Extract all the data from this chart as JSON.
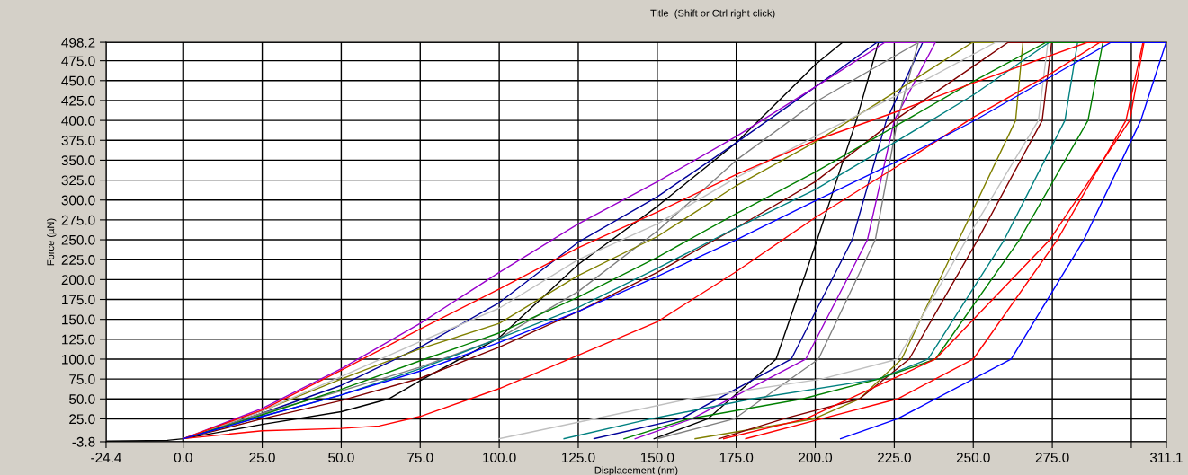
{
  "chart_data": {
    "type": "line",
    "title": "Title  (Shift or Ctrl right click)",
    "xlabel": "Displacement (nm)",
    "ylabel": "Force (µN)",
    "xlim": [
      -24.4,
      311.1
    ],
    "ylim": [
      -3.8,
      498.2
    ],
    "xticks": [
      {
        "value": -24.4,
        "label": "-24.4"
      },
      {
        "value": 0,
        "label": "0.0"
      },
      {
        "value": 25,
        "label": "25.0"
      },
      {
        "value": 50,
        "label": "50.0"
      },
      {
        "value": 75,
        "label": "75.0"
      },
      {
        "value": 100,
        "label": "100.0"
      },
      {
        "value": 125,
        "label": "125.0"
      },
      {
        "value": 150,
        "label": "150.0"
      },
      {
        "value": 175,
        "label": "175.0"
      },
      {
        "value": 200,
        "label": "200.0"
      },
      {
        "value": 225,
        "label": "225.0"
      },
      {
        "value": 250,
        "label": "250.0"
      },
      {
        "value": 275,
        "label": "275.0"
      },
      {
        "value": 300,
        "label": null
      },
      {
        "value": 311.1,
        "label": "311.1"
      }
    ],
    "yticks": [
      {
        "value": -3.8,
        "label": "-3.8"
      },
      {
        "value": 25,
        "label": "25.0"
      },
      {
        "value": 50,
        "label": "50.0"
      },
      {
        "value": 75,
        "label": "75.0"
      },
      {
        "value": 100,
        "label": "100.0"
      },
      {
        "value": 125,
        "label": "125.0"
      },
      {
        "value": 150,
        "label": "150.0"
      },
      {
        "value": 175,
        "label": "175.0"
      },
      {
        "value": 200,
        "label": "200.0"
      },
      {
        "value": 225,
        "label": "225.0"
      },
      {
        "value": 250,
        "label": "250.0"
      },
      {
        "value": 275,
        "label": "275.0"
      },
      {
        "value": 300,
        "label": "300.0"
      },
      {
        "value": 325,
        "label": "325.0"
      },
      {
        "value": 350,
        "label": "350.0"
      },
      {
        "value": 375,
        "label": "375.0"
      },
      {
        "value": 400,
        "label": "400.0"
      },
      {
        "value": 425,
        "label": "425.0"
      },
      {
        "value": 450,
        "label": "450.0"
      },
      {
        "value": 475,
        "label": "475.0"
      },
      {
        "value": 498.2,
        "label": "498.2"
      }
    ],
    "grid": true,
    "legend": false,
    "marker": "none",
    "line_style": "solid",
    "ref_lines": [
      {
        "axis": "x",
        "value": 0,
        "color": "#000000"
      }
    ],
    "series": [
      {
        "color": "#000000",
        "x": [
          -24,
          -5,
          0,
          25,
          50,
          65,
          75,
          100,
          125,
          150,
          175,
          200,
          208.6,
          220,
          213,
          200.6,
          187.6,
          166,
          149
        ],
        "values": [
          -3,
          -2,
          0,
          18,
          34,
          50,
          73,
          127,
          219,
          292,
          372,
          470,
          498,
          498,
          400,
          250,
          100,
          25,
          0
        ]
      },
      {
        "color": "#000099",
        "x": [
          0,
          25,
          50,
          75,
          100,
          125,
          150,
          175,
          200,
          219.5,
          234,
          222.5,
          211.7,
          192.4,
          157.5,
          130
        ],
        "values": [
          0,
          32,
          67,
          115,
          171,
          247,
          304,
          372,
          442,
          498,
          498,
          400,
          250,
          100,
          25,
          0
        ]
      },
      {
        "color": "#9900cc",
        "x": [
          0,
          25,
          50,
          75,
          100,
          125,
          150,
          175,
          200,
          222,
          238,
          225,
          216.5,
          197,
          161,
          143
        ],
        "values": [
          0,
          38,
          88,
          145,
          209,
          270,
          323,
          380,
          442,
          498,
          498,
          400,
          250,
          100,
          25,
          0
        ]
      },
      {
        "color": "#808080",
        "x": [
          0,
          25,
          50,
          75,
          100,
          125,
          150,
          175,
          200,
          232.6,
          232.6,
          226,
          219,
          201,
          174.4,
          150
        ],
        "values": [
          0,
          32,
          60,
          90,
          126,
          185,
          261,
          350,
          423,
          498,
          498,
          400,
          250,
          100,
          25,
          0
        ]
      },
      {
        "color": "#808000",
        "x": [
          0,
          25,
          50,
          75,
          100,
          125,
          150,
          175,
          200,
          225,
          249.7,
          265.7,
          263.4,
          245.4,
          227.3,
          214,
          199.6,
          162
        ],
        "values": [
          0,
          35,
          75,
          113,
          145,
          205,
          254,
          318,
          373,
          435,
          498,
          498,
          400,
          250,
          100,
          50,
          25,
          0
        ]
      },
      {
        "color": "#c0c0c0",
        "x": [
          0,
          25,
          50,
          75,
          100,
          125,
          150,
          175,
          200,
          225,
          257,
          273.6,
          270.6,
          247.8,
          226,
          202,
          160,
          130,
          100
        ],
        "values": [
          0,
          35,
          78,
          122,
          164,
          225,
          270,
          328,
          380,
          430,
          498,
          498,
          400,
          250,
          100,
          75,
          50,
          25,
          0
        ]
      },
      {
        "color": "#800000",
        "x": [
          0,
          25,
          50,
          75,
          100,
          125,
          150,
          175,
          200,
          225,
          250,
          261,
          274.8,
          271.8,
          251.4,
          229.7,
          214,
          190,
          169.5
        ],
        "values": [
          0,
          25,
          48,
          76,
          115,
          160,
          209,
          265,
          323,
          400,
          468,
          498,
          498,
          400,
          250,
          100,
          50,
          25,
          0
        ]
      },
      {
        "color": "#008080",
        "x": [
          0,
          25,
          50,
          75,
          100,
          125,
          150,
          175,
          200,
          225,
          250,
          274,
          283,
          279,
          259.8,
          235.7,
          220,
          180,
          148,
          120.5
        ],
        "values": [
          0,
          28,
          55,
          88,
          126,
          165,
          214,
          265,
          313,
          372,
          432,
          498,
          498,
          400,
          250,
          100,
          75,
          50,
          25,
          0
        ]
      },
      {
        "color": "#008000",
        "x": [
          0,
          25,
          50,
          75,
          100,
          125,
          150,
          175,
          200,
          225,
          250,
          273,
          291,
          286.3,
          264.6,
          238,
          220,
          196,
          160,
          139.5
        ],
        "values": [
          0,
          30,
          62,
          98,
          133,
          178,
          228,
          283,
          335,
          392,
          449,
          498,
          498,
          400,
          250,
          100,
          75,
          50,
          25,
          0
        ]
      },
      {
        "color": "#ff0000",
        "x": [
          0,
          25,
          50,
          75,
          100,
          125,
          150,
          175,
          200,
          225,
          250,
          286,
          304,
          299.5,
          274.2,
          238,
          197,
          171
        ],
        "values": [
          0,
          36,
          86,
          138,
          188,
          240,
          285,
          332,
          375,
          410,
          447,
          498,
          498,
          400,
          250,
          100,
          25,
          0
        ]
      },
      {
        "color": "#ff0000",
        "x": [
          0,
          25,
          50,
          62,
          75,
          100,
          125,
          150,
          175,
          200,
          225,
          250,
          275,
          290,
          303.7,
          298.3,
          276.6,
          250,
          226,
          202,
          178
        ],
        "values": [
          0,
          10,
          13,
          16,
          28,
          63,
          105,
          147,
          210,
          278,
          340,
          404,
          460,
          498,
          498,
          400,
          250,
          100,
          50,
          25,
          0
        ]
      },
      {
        "color": "#0000ff",
        "x": [
          0,
          25,
          50,
          75,
          100,
          125,
          150,
          175,
          200,
          225,
          250,
          275,
          293.5,
          311,
          303,
          285,
          262,
          226,
          208
        ],
        "values": [
          0,
          28,
          55,
          85,
          121,
          160,
          204,
          250,
          299,
          347,
          399,
          456,
          498,
          498,
          400,
          250,
          100,
          25,
          0
        ]
      }
    ]
  }
}
